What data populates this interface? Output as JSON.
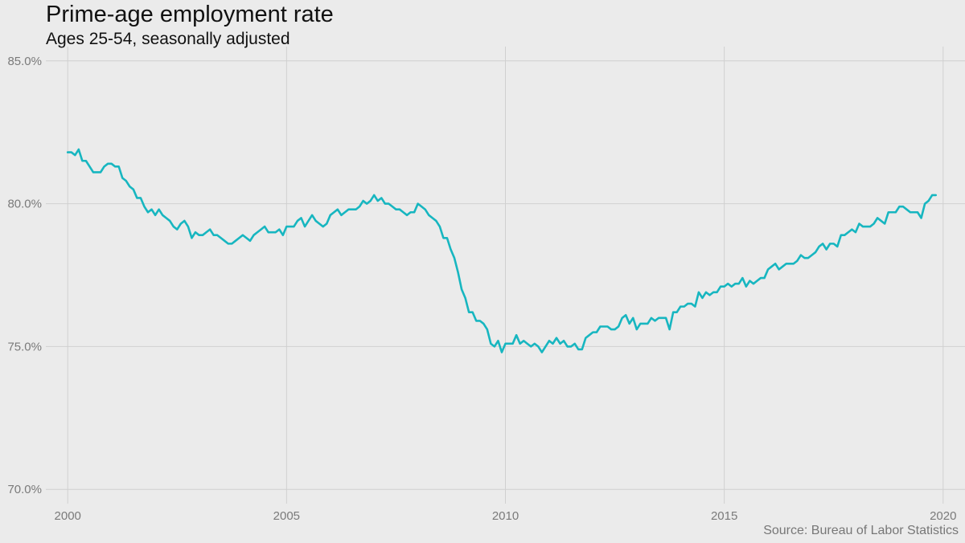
{
  "header": {
    "title": "Prime-age employment rate",
    "subtitle": "Ages 25-54, seasonally adjusted"
  },
  "footer": {
    "source": "Source: Bureau of Labor Statistics"
  },
  "colors": {
    "background": "#ebebeb",
    "grid": "#d0d0d0",
    "line": "#17b6c0",
    "tick_text": "#7a7a7a"
  },
  "chart_data": {
    "type": "line",
    "title": "Prime-age employment rate",
    "subtitle": "Ages 25-54, seasonally adjusted",
    "xlabel": "",
    "ylabel": "",
    "x_ticks": [
      2000,
      2005,
      2010,
      2015,
      2020
    ],
    "x_tick_labels": [
      "2000",
      "2005",
      "2010",
      "2015",
      "2020"
    ],
    "y_ticks": [
      70,
      75,
      80,
      85
    ],
    "y_tick_labels": [
      "70.0%",
      "75.0%",
      "80.0%",
      "85.0%"
    ],
    "xlim": [
      1999.5,
      2020.5
    ],
    "ylim": [
      69.5,
      85.5
    ],
    "grid": true,
    "legend": "none",
    "series": [
      {
        "x_start": "2000-01",
        "frequency": "monthly",
        "x_end": "2019-10",
        "values": [
          81.8,
          81.8,
          81.7,
          81.9,
          81.5,
          81.5,
          81.3,
          81.1,
          81.1,
          81.1,
          81.3,
          81.4,
          81.4,
          81.3,
          81.3,
          80.9,
          80.8,
          80.6,
          80.5,
          80.2,
          80.2,
          79.9,
          79.7,
          79.8,
          79.6,
          79.8,
          79.6,
          79.5,
          79.4,
          79.2,
          79.1,
          79.3,
          79.4,
          79.2,
          78.8,
          79.0,
          78.9,
          78.9,
          79.0,
          79.1,
          78.9,
          78.9,
          78.8,
          78.7,
          78.6,
          78.6,
          78.7,
          78.8,
          78.9,
          78.8,
          78.7,
          78.9,
          79.0,
          79.1,
          79.2,
          79.0,
          79.0,
          79.0,
          79.1,
          78.9,
          79.2,
          79.2,
          79.2,
          79.4,
          79.5,
          79.2,
          79.4,
          79.6,
          79.4,
          79.3,
          79.2,
          79.3,
          79.6,
          79.7,
          79.8,
          79.6,
          79.7,
          79.8,
          79.8,
          79.8,
          79.9,
          80.1,
          80.0,
          80.1,
          80.3,
          80.1,
          80.2,
          80.0,
          80.0,
          79.9,
          79.8,
          79.8,
          79.7,
          79.6,
          79.7,
          79.7,
          80.0,
          79.9,
          79.8,
          79.6,
          79.5,
          79.4,
          79.2,
          78.8,
          78.8,
          78.4,
          78.1,
          77.6,
          77.0,
          76.7,
          76.2,
          76.2,
          75.9,
          75.9,
          75.8,
          75.6,
          75.1,
          75.0,
          75.2,
          74.8,
          75.1,
          75.1,
          75.1,
          75.4,
          75.1,
          75.2,
          75.1,
          75.0,
          75.1,
          75.0,
          74.8,
          75.0,
          75.2,
          75.1,
          75.3,
          75.1,
          75.2,
          75.0,
          75.0,
          75.1,
          74.9,
          74.9,
          75.3,
          75.4,
          75.5,
          75.5,
          75.7,
          75.7,
          75.7,
          75.6,
          75.6,
          75.7,
          76.0,
          76.1,
          75.8,
          76.0,
          75.6,
          75.8,
          75.8,
          75.8,
          76.0,
          75.9,
          76.0,
          76.0,
          76.0,
          75.6,
          76.2,
          76.2,
          76.4,
          76.4,
          76.5,
          76.5,
          76.4,
          76.9,
          76.7,
          76.9,
          76.8,
          76.9,
          76.9,
          77.1,
          77.1,
          77.2,
          77.1,
          77.2,
          77.2,
          77.4,
          77.1,
          77.3,
          77.2,
          77.3,
          77.4,
          77.4,
          77.7,
          77.8,
          77.9,
          77.7,
          77.8,
          77.9,
          77.9,
          77.9,
          78.0,
          78.2,
          78.1,
          78.1,
          78.2,
          78.3,
          78.5,
          78.6,
          78.4,
          78.6,
          78.6,
          78.5,
          78.9,
          78.9,
          79.0,
          79.1,
          79.0,
          79.3,
          79.2,
          79.2,
          79.2,
          79.3,
          79.5,
          79.4,
          79.3,
          79.7,
          79.7,
          79.7,
          79.9,
          79.9,
          79.8,
          79.7,
          79.7,
          79.7,
          79.5,
          80.0,
          80.1,
          80.3,
          80.3
        ]
      }
    ]
  }
}
